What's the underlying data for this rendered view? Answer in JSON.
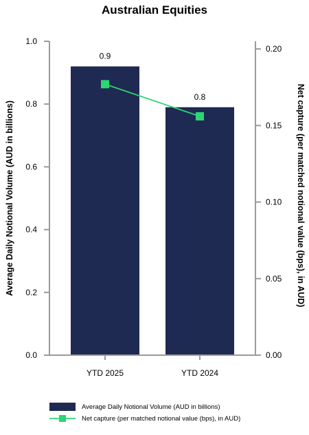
{
  "chart_data": {
    "type": "bar",
    "title": "Australian Equities",
    "categories": [
      "YTD 2025",
      "YTD 2024"
    ],
    "series": [
      {
        "name": "Average Daily Notional Volume (AUD in billions)",
        "type": "bar",
        "axis": "left",
        "values": [
          0.92,
          0.79
        ],
        "labels": [
          "0.9",
          "0.8"
        ],
        "color": "#1f2a52"
      },
      {
        "name": "Net capture (per matched notional value (bps), in AUD)",
        "type": "line",
        "axis": "right",
        "values": [
          0.177,
          0.156
        ],
        "color": "#2ed573"
      }
    ],
    "y_left": {
      "label": "Average Daily Notional Volume (AUD in billions)",
      "range": [
        0,
        1.0
      ],
      "ticks": [
        "0.0",
        "0.2",
        "0.4",
        "0.6",
        "0.8",
        "1.0"
      ]
    },
    "y_right": {
      "label": "Net capture (per matched notional value (bps), in AUD)",
      "range": [
        0,
        0.205
      ],
      "ticks": [
        "0.00",
        "0.05",
        "0.10",
        "0.15",
        "0.20"
      ]
    },
    "legend_position": "bottom",
    "grid": false
  }
}
